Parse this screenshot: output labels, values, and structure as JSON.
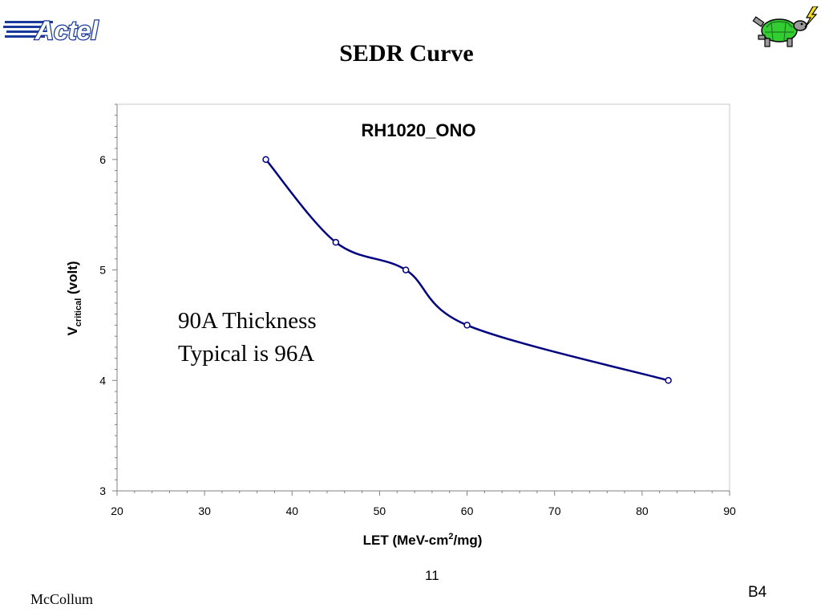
{
  "slide": {
    "title": "SEDR Curve",
    "logo_text": "Actel",
    "annotation_line1": "90A Thickness",
    "annotation_line2": "Typical is 96A",
    "footer_author": "McCollum",
    "footer_page": "11",
    "footer_code": "B4"
  },
  "chart_data": {
    "type": "line",
    "title": "RH1020_ONO",
    "xlabel_main": "LET (MeV-cm",
    "xlabel_sup": "2",
    "xlabel_tail": "/mg)",
    "ylabel_main": "V",
    "ylabel_sub": "critical",
    "ylabel_tail": " (volt)",
    "xlim": [
      20,
      90
    ],
    "ylim": [
      3,
      6.5
    ],
    "xticks": [
      20,
      30,
      40,
      50,
      60,
      70,
      80,
      90
    ],
    "yticks": [
      3,
      4,
      5,
      6
    ],
    "x": [
      37,
      45,
      53,
      60,
      83
    ],
    "y": [
      6.0,
      5.25,
      5.0,
      4.5,
      4.0
    ],
    "line_color": "#000080",
    "marker": "open-circle",
    "grid": false,
    "legend": "none"
  },
  "colors": {
    "logo_blue": "#1a3a9a",
    "turtle_green": "#33cc33",
    "bolt_yellow": "#f5e020"
  }
}
